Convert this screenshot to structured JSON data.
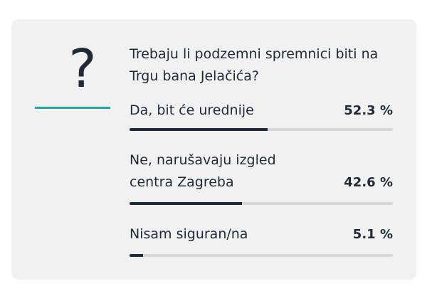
{
  "poll": {
    "icon": "question-mark-icon",
    "icon_glyph": "?",
    "accent_color": "#1fa8a6",
    "bar_color": "#1e2a3a",
    "question": "Trebaju li podzemni spremnici biti na Trgu bana Jelačića?",
    "options": [
      {
        "label": "Da, bit će urednije",
        "percent_text": "52.3 %",
        "percent": 52.3
      },
      {
        "label": "Ne, narušavaju izgled centra Zagreba",
        "percent_text": "42.6 %",
        "percent": 42.6
      },
      {
        "label": "Nisam siguran/na",
        "percent_text": "5.1 %",
        "percent": 5.1
      }
    ]
  }
}
